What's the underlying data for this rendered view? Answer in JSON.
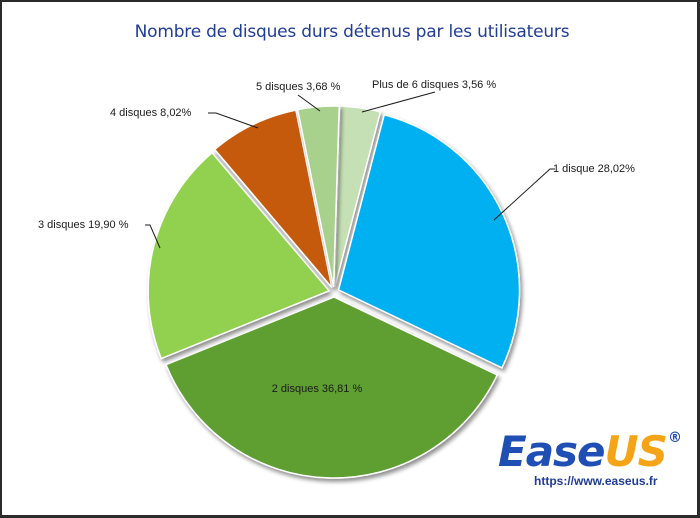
{
  "chart_data": {
    "type": "pie",
    "title": "Nombre de disques durs détenus par les utilisateurs",
    "categories": [
      "1 disque",
      "2 disques",
      "3 disques",
      "4 disques",
      "5 disques",
      "Plus de 6 disques"
    ],
    "values": [
      28.02,
      36.81,
      19.9,
      8.02,
      3.68,
      3.56
    ],
    "unit": "%",
    "labels": [
      "1 disque 28,02%",
      "2 disques 36,81 %",
      "3 disques 19,90 %",
      "4 disques 8,02%",
      "5 disques 3,68 %",
      "Plus de 6 disques 3,56 %"
    ],
    "colors": [
      "#00b0f0",
      "#5f9f33",
      "#92d050",
      "#c55a11",
      "#a9d18e",
      "#c5e0b4"
    ],
    "legend": "none (data labels with leader lines)",
    "exploded": true
  },
  "pie_slices_order_clockwise_from_top": [
    {
      "index": 5,
      "label": "Plus de 6 disques 3,56 %"
    },
    {
      "index": 0,
      "label": "1 disque 28,02%"
    },
    {
      "index": 1,
      "label": "2 disques 36,81 %"
    },
    {
      "index": 2,
      "label": "3 disques 19,90 %"
    },
    {
      "index": 3,
      "label": "4 disques 8,02%"
    },
    {
      "index": 4,
      "label": "5 disques 3,68 %"
    }
  ],
  "watermark": {
    "brand_part1": "Ease",
    "brand_part2": "US",
    "registered": "®",
    "url": "https://www.easeus.fr",
    "colors": {
      "ease": "#1f4eb4",
      "us": "#f5a417"
    }
  }
}
